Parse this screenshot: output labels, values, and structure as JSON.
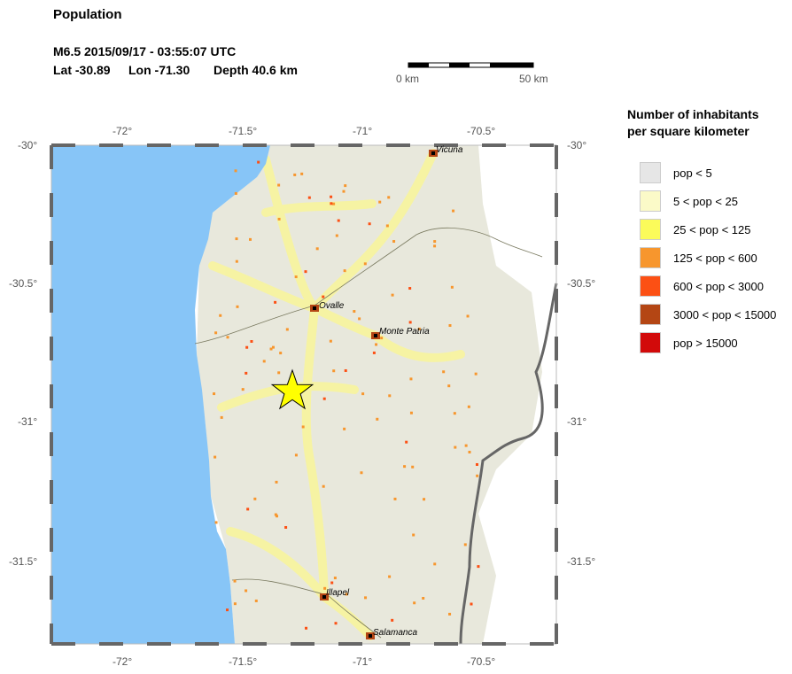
{
  "title": "Population",
  "event": {
    "line1": "M6.5  2015/09/17 - 03:55:07 UTC",
    "lat": "Lat -30.89",
    "lon": "Lon -71.30",
    "depth": "Depth  40.6 km"
  },
  "scale": {
    "start": "0 km",
    "end": "50 km"
  },
  "map": {
    "lon_ticks": [
      "-72°",
      "-71.5°",
      "-71°",
      "-70.5°"
    ],
    "lat_ticks": [
      "-30°",
      "-30.5°",
      "-31°",
      "-31.5°"
    ],
    "epicenter_icon": "star-icon",
    "ocean_color": "#87c5f7",
    "cities": [
      {
        "name": "Vicuna"
      },
      {
        "name": "Ovalle"
      },
      {
        "name": "Monte Patria"
      },
      {
        "name": "Illapel"
      },
      {
        "name": "Salamanca"
      }
    ]
  },
  "legend": {
    "title_line1": "Number of inhabitants",
    "title_line2": "per square kilometer",
    "items": [
      {
        "label": "pop < 5",
        "color": "#e6e6e6"
      },
      {
        "label": "5 < pop < 25",
        "color": "#fbfac8"
      },
      {
        "label": "25 < pop < 125",
        "color": "#fbfb5a"
      },
      {
        "label": "125 < pop < 600",
        "color": "#f7962d"
      },
      {
        "label": "600 < pop < 3000",
        "color": "#fc5014"
      },
      {
        "label": "3000 < pop < 15000",
        "color": "#b44614"
      },
      {
        "label": "pop > 15000",
        "color": "#d20a0a"
      }
    ]
  }
}
